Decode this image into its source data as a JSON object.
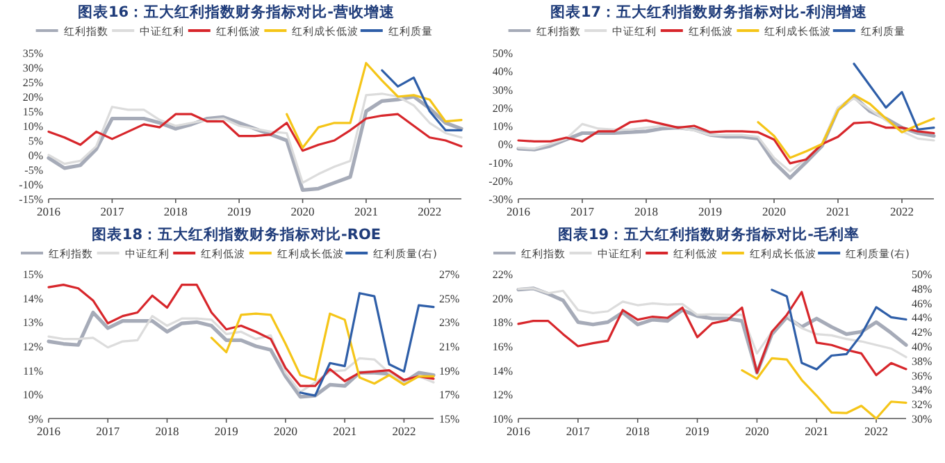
{
  "chart_data": [
    {
      "type": "line",
      "title": "图表16：五大红利指数财务指标对比-营收增速",
      "legend": "top",
      "x": [
        2016,
        2016.25,
        2016.5,
        2016.75,
        2017,
        2017.25,
        2017.5,
        2017.75,
        2018,
        2018.25,
        2018.5,
        2018.75,
        2019,
        2019.25,
        2019.5,
        2019.75,
        2020,
        2020.25,
        2020.5,
        2020.75,
        2021,
        2021.25,
        2021.5,
        2021.75,
        2022,
        2022.25,
        2022.5
      ],
      "xlim": [
        2016,
        2022.5
      ],
      "xticks": [
        2016,
        2017,
        2018,
        2019,
        2020,
        2021,
        2022
      ],
      "ylim": [
        -15,
        35
      ],
      "yticks": [
        {
          "value": -15,
          "label": "-15%"
        },
        {
          "value": -10,
          "label": "-10%"
        },
        {
          "value": -5,
          "label": "-5%"
        },
        {
          "value": 0,
          "label": "0%"
        },
        {
          "value": 5,
          "label": "5%"
        },
        {
          "value": 10,
          "label": "10%"
        },
        {
          "value": 15,
          "label": "15%"
        },
        {
          "value": 20,
          "label": "20%"
        },
        {
          "value": 25,
          "label": "25%"
        },
        {
          "value": 30,
          "label": "30%"
        },
        {
          "value": 35,
          "label": "35%"
        }
      ],
      "series": [
        {
          "name": "红利指数",
          "color": "#a6abb8",
          "values": [
            -1,
            -4.5,
            -3.5,
            2,
            12.5,
            12.5,
            12.5,
            11,
            9,
            10.5,
            12.5,
            13,
            11,
            9,
            7,
            5,
            -12,
            -11.5,
            -9.5,
            -7.5,
            15,
            18.5,
            19,
            20,
            16,
            11,
            9
          ]
        },
        {
          "name": "中证红利",
          "color": "#dcdcdc",
          "values": [
            0,
            -3,
            -2,
            3,
            16.5,
            15.5,
            15.5,
            12,
            10,
            11,
            12,
            12.5,
            10,
            9,
            8,
            7.5,
            -9.5,
            -6.5,
            -4,
            -2,
            20.5,
            21,
            20,
            17,
            11,
            7.5,
            6
          ]
        },
        {
          "name": "红利低波",
          "color": "#d7262b",
          "values": [
            8,
            6,
            3.5,
            8,
            5.5,
            8,
            10.5,
            9.5,
            14,
            14,
            11.5,
            11.5,
            6.5,
            6.5,
            7,
            11,
            1.5,
            3.5,
            5,
            8.5,
            12.5,
            13.5,
            14,
            10,
            6,
            5,
            3
          ]
        },
        {
          "name": "红利成长低波",
          "color": "#f5c518",
          "values": [
            null,
            null,
            null,
            null,
            null,
            null,
            null,
            null,
            null,
            null,
            null,
            null,
            null,
            null,
            null,
            14,
            2.5,
            9.5,
            11,
            11,
            31.5,
            25.5,
            20,
            20.5,
            19,
            11.5,
            12
          ]
        },
        {
          "name": "红利质量",
          "color": "#2e5ea8",
          "values": [
            null,
            null,
            null,
            null,
            null,
            null,
            null,
            null,
            null,
            null,
            null,
            null,
            null,
            null,
            null,
            null,
            null,
            null,
            null,
            null,
            null,
            29,
            23.5,
            26.5,
            15,
            8.5,
            8.5
          ]
        }
      ]
    },
    {
      "type": "line",
      "title": "图表17：五大红利指数财务指标对比-利润增速",
      "legend": "top",
      "x": [
        2016,
        2016.25,
        2016.5,
        2016.75,
        2017,
        2017.25,
        2017.5,
        2017.75,
        2018,
        2018.25,
        2018.5,
        2018.75,
        2019,
        2019.25,
        2019.5,
        2019.75,
        2020,
        2020.25,
        2020.5,
        2020.75,
        2021,
        2021.25,
        2021.5,
        2021.75,
        2022,
        2022.25,
        2022.5
      ],
      "xlim": [
        2016,
        2022.5
      ],
      "xticks": [
        2016,
        2017,
        2018,
        2019,
        2020,
        2021,
        2022
      ],
      "ylim": [
        -30,
        50
      ],
      "yticks": [
        {
          "value": -30,
          "label": "-30%"
        },
        {
          "value": -20,
          "label": "-20%"
        },
        {
          "value": -10,
          "label": "-10%"
        },
        {
          "value": 0,
          "label": "0%"
        },
        {
          "value": 10,
          "label": "10%"
        },
        {
          "value": 20,
          "label": "20%"
        },
        {
          "value": 30,
          "label": "30%"
        },
        {
          "value": 40,
          "label": "40%"
        },
        {
          "value": 50,
          "label": "50%"
        }
      ],
      "series": [
        {
          "name": "红利指数",
          "color": "#a6abb8",
          "values": [
            -2.5,
            -3,
            -1,
            2.5,
            6,
            6,
            6,
            6.5,
            7,
            8.5,
            9,
            8,
            5,
            4,
            4,
            3,
            -10,
            -18.5,
            -10,
            -1,
            19,
            26,
            18,
            14,
            9,
            6,
            4.5
          ]
        },
        {
          "name": "中证红利",
          "color": "#dcdcdc",
          "values": [
            -2,
            -2.5,
            0,
            3,
            11,
            8.5,
            8,
            8,
            9,
            10,
            9,
            7.5,
            5,
            5,
            5,
            4,
            -7.5,
            -15,
            -8,
            0,
            20,
            25,
            19,
            13,
            7,
            3,
            2
          ]
        },
        {
          "name": "红利低波",
          "color": "#d7262b",
          "values": [
            2,
            1.5,
            1.5,
            3.5,
            1.5,
            7,
            7,
            12,
            13,
            11,
            9,
            10,
            6.5,
            7,
            7,
            6.5,
            2.5,
            -10.5,
            -8.5,
            0,
            4,
            11.5,
            12,
            9,
            9,
            7,
            6
          ]
        },
        {
          "name": "红利成长低波",
          "color": "#f5c518",
          "values": [
            null,
            null,
            null,
            null,
            null,
            null,
            null,
            null,
            null,
            null,
            null,
            null,
            null,
            null,
            null,
            12,
            4.5,
            -7.5,
            -4,
            0,
            18.5,
            27,
            22,
            14,
            6.5,
            10.5,
            14
          ]
        },
        {
          "name": "红利质量",
          "color": "#2e5ea8",
          "values": [
            null,
            null,
            null,
            null,
            null,
            null,
            null,
            null,
            null,
            null,
            null,
            null,
            null,
            null,
            null,
            null,
            null,
            null,
            null,
            null,
            null,
            44,
            32,
            20,
            28.5,
            8,
            9
          ]
        }
      ]
    },
    {
      "type": "line",
      "title": "图表18：五大红利指数财务指标对比-ROE",
      "legend": "top",
      "x": [
        2016,
        2016.25,
        2016.5,
        2016.75,
        2017,
        2017.25,
        2017.5,
        2017.75,
        2018,
        2018.25,
        2018.5,
        2018.75,
        2019,
        2019.25,
        2019.5,
        2019.75,
        2020,
        2020.25,
        2020.5,
        2020.75,
        2021,
        2021.25,
        2021.5,
        2021.75,
        2022,
        2022.25,
        2022.5
      ],
      "xlim": [
        2016,
        2022.5
      ],
      "xticks": [
        2016,
        2017,
        2018,
        2019,
        2020,
        2021,
        2022
      ],
      "ylim": [
        9,
        15
      ],
      "yticks": [
        {
          "value": 9,
          "label": "9%"
        },
        {
          "value": 10,
          "label": "10%"
        },
        {
          "value": 11,
          "label": "11%"
        },
        {
          "value": 12,
          "label": "12%"
        },
        {
          "value": 13,
          "label": "13%"
        },
        {
          "value": 14,
          "label": "14%"
        },
        {
          "value": 15,
          "label": "15%"
        }
      ],
      "y2lim": [
        15,
        27
      ],
      "y2ticks": [
        {
          "value": 15,
          "label": "15%"
        },
        {
          "value": 17,
          "label": "17%"
        },
        {
          "value": 19,
          "label": "19%"
        },
        {
          "value": 21,
          "label": "21%"
        },
        {
          "value": 23,
          "label": "23%"
        },
        {
          "value": 25,
          "label": "25%"
        },
        {
          "value": 27,
          "label": "27%"
        }
      ],
      "series": [
        {
          "name": "红利指数",
          "color": "#a6abb8",
          "values": [
            12.2,
            12.1,
            12.05,
            13.4,
            12.75,
            13.05,
            13.05,
            13.05,
            12.6,
            12.95,
            13,
            12.85,
            12.25,
            12.25,
            12,
            11.85,
            10.75,
            9.9,
            9.95,
            10.4,
            10.35,
            10.9,
            10.9,
            10.85,
            10.5,
            10.9,
            10.8
          ]
        },
        {
          "name": "中证红利",
          "color": "#dcdcdc",
          "values": [
            12.4,
            12.3,
            12.3,
            12.35,
            11.95,
            12.2,
            12.25,
            13.25,
            12.85,
            13.15,
            13.15,
            13.1,
            12.5,
            12.6,
            12.3,
            12.45,
            10.9,
            10.1,
            10.5,
            10.95,
            11,
            11.5,
            11.45,
            10.9,
            10.45,
            10.75,
            10.5
          ]
        },
        {
          "name": "红利低波",
          "color": "#d7262b",
          "values": [
            14.45,
            14.55,
            14.4,
            13.9,
            12.95,
            13.25,
            13.4,
            14.1,
            13.6,
            14.55,
            14.55,
            13.4,
            12.7,
            12.85,
            12.6,
            12.3,
            11.1,
            10.35,
            10.35,
            11.05,
            10.55,
            10.9,
            10.95,
            11,
            10.6,
            10.75,
            10.65
          ]
        },
        {
          "name": "红利成长低波",
          "color": "#f5c518",
          "values": [
            null,
            null,
            null,
            null,
            null,
            null,
            null,
            null,
            null,
            null,
            null,
            12.35,
            11.75,
            13.3,
            13.35,
            13.3,
            12.1,
            10.8,
            10.6,
            13.35,
            13.1,
            10.7,
            10.45,
            10.8,
            10.4,
            10.75,
            10.75
          ]
        },
        {
          "name": "红利质量(右)",
          "color": "#2e5ea8",
          "axis": "y2",
          "values": [
            null,
            null,
            null,
            null,
            null,
            null,
            null,
            null,
            null,
            null,
            null,
            null,
            null,
            null,
            null,
            null,
            null,
            17.15,
            16.9,
            19.6,
            19.35,
            25.4,
            25.15,
            19.5,
            18.9,
            24.4,
            24.25
          ]
        }
      ]
    },
    {
      "type": "line",
      "title": "图表19：五大红利指数财务指标对比-毛利率",
      "legend": "top",
      "x": [
        2016,
        2016.25,
        2016.5,
        2016.75,
        2017,
        2017.25,
        2017.5,
        2017.75,
        2018,
        2018.25,
        2018.5,
        2018.75,
        2019,
        2019.25,
        2019.5,
        2019.75,
        2020,
        2020.25,
        2020.5,
        2020.75,
        2021,
        2021.25,
        2021.5,
        2021.75,
        2022,
        2022.25,
        2022.5
      ],
      "xlim": [
        2016,
        2022.5
      ],
      "xticks": [
        2016,
        2017,
        2018,
        2019,
        2020,
        2021,
        2022
      ],
      "ylim": [
        10,
        22
      ],
      "yticks": [
        {
          "value": 10,
          "label": "10%"
        },
        {
          "value": 12,
          "label": "12%"
        },
        {
          "value": 14,
          "label": "14%"
        },
        {
          "value": 16,
          "label": "16%"
        },
        {
          "value": 18,
          "label": "18%"
        },
        {
          "value": 20,
          "label": "20%"
        },
        {
          "value": 22,
          "label": "22%"
        }
      ],
      "y2lim": [
        30,
        50
      ],
      "y2ticks": [
        {
          "value": 30,
          "label": "30%"
        },
        {
          "value": 32,
          "label": "32%"
        },
        {
          "value": 34,
          "label": "34%"
        },
        {
          "value": 36,
          "label": "36%"
        },
        {
          "value": 38,
          "label": "38%"
        },
        {
          "value": 40,
          "label": "40%"
        },
        {
          "value": 42,
          "label": "42%"
        },
        {
          "value": 44,
          "label": "44%"
        },
        {
          "value": 46,
          "label": "46%"
        },
        {
          "value": 48,
          "label": "48%"
        },
        {
          "value": 50,
          "label": "50%"
        }
      ],
      "series": [
        {
          "name": "红利指数",
          "color": "#a6abb8",
          "values": [
            20.7,
            20.8,
            20.35,
            19.8,
            18,
            17.8,
            18,
            18.8,
            17.8,
            18.2,
            18.1,
            19,
            18.5,
            18.3,
            18.3,
            18.1,
            13.8,
            17,
            18.4,
            17.6,
            18.3,
            17.6,
            17,
            17.2,
            18,
            17.1,
            16.1
          ]
        },
        {
          "name": "中证红利",
          "color": "#dcdcdc",
          "values": [
            20.75,
            20.8,
            20.4,
            20.6,
            19,
            18.75,
            18.9,
            19.7,
            19.4,
            19.55,
            19.45,
            19.5,
            18.6,
            18.65,
            18.6,
            18.6,
            15.4,
            17.2,
            18.6,
            17.5,
            17,
            16.9,
            16.6,
            16.4,
            16.1,
            15.8,
            15.1
          ]
        },
        {
          "name": "红利低波",
          "color": "#d7262b",
          "values": [
            17.85,
            18.1,
            18.1,
            17,
            16,
            16.25,
            16.45,
            19,
            18.2,
            18.45,
            18.35,
            19.2,
            16.75,
            17.9,
            18.15,
            19.2,
            13.8,
            17.2,
            18.6,
            20.5,
            16.3,
            16.1,
            15.7,
            15.4,
            13.6,
            14.6,
            14.1
          ]
        },
        {
          "name": "红利成长低波",
          "color": "#f5c518",
          "values": [
            null,
            null,
            null,
            null,
            null,
            null,
            null,
            null,
            null,
            null,
            null,
            null,
            null,
            null,
            null,
            14,
            13.3,
            15,
            14.9,
            13.2,
            11.9,
            10.5,
            10.45,
            11.05,
            10,
            11.4,
            11.3
          ]
        },
        {
          "name": "红利质量(右)",
          "color": "#2e5ea8",
          "axis": "y2",
          "values": [
            null,
            null,
            null,
            null,
            null,
            null,
            null,
            null,
            null,
            null,
            null,
            null,
            null,
            null,
            null,
            null,
            null,
            47.8,
            46.9,
            37.7,
            36.8,
            38.7,
            38.9,
            41.6,
            45.4,
            44,
            43.7
          ]
        }
      ]
    }
  ]
}
